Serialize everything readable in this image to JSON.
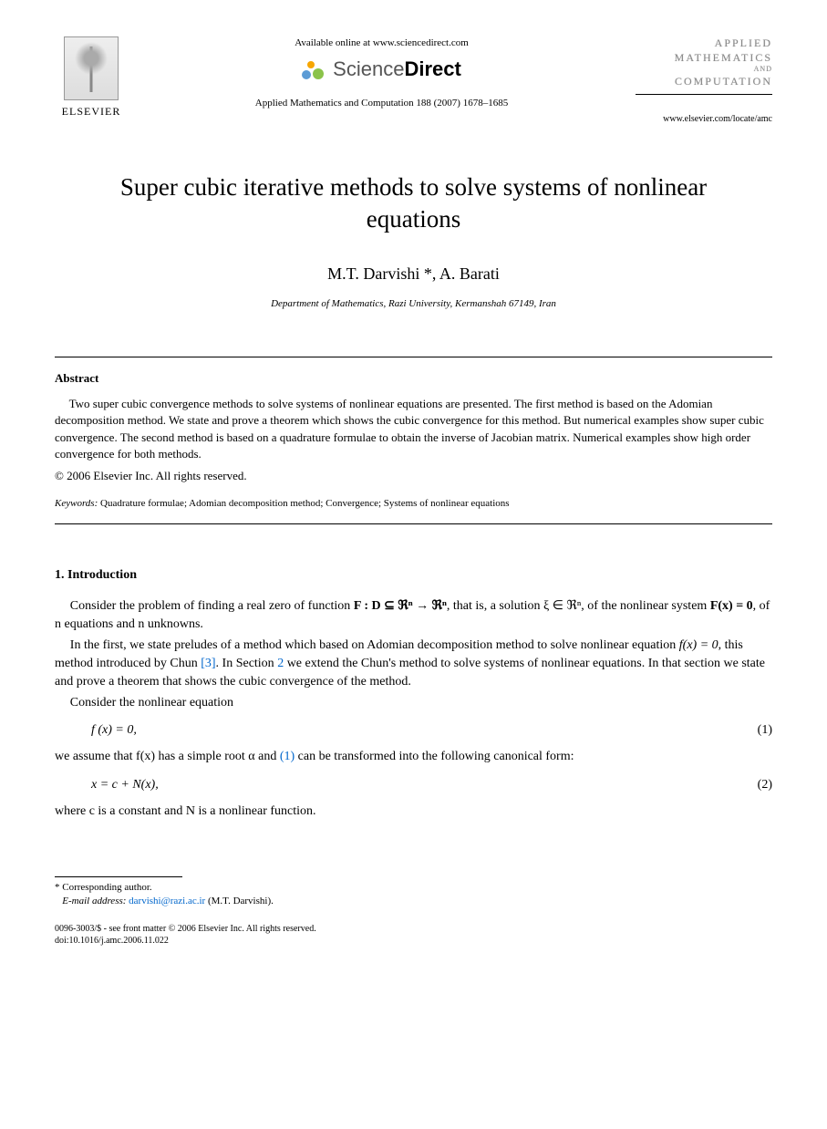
{
  "header": {
    "publisher_name": "ELSEVIER",
    "available_text": "Available online at www.sciencedirect.com",
    "sd_brand_light": "Science",
    "sd_brand_bold": "Direct",
    "journal_ref": "Applied Mathematics and Computation 188 (2007) 1678–1685",
    "journal_logo_lines": [
      "APPLIED",
      "MATHEMATICS",
      "AND",
      "COMPUTATION"
    ],
    "journal_url": "www.elsevier.com/locate/amc"
  },
  "title": "Super cubic iterative methods to solve systems of nonlinear equations",
  "authors_html": "M.T. Darvishi *, A. Barati",
  "author1": "M.T. Darvishi",
  "author_sep": " *, ",
  "author2": "A. Barati",
  "affiliation": "Department of Mathematics, Razi University, Kermanshah 67149, Iran",
  "abstract": {
    "heading": "Abstract",
    "text": "Two super cubic convergence methods to solve systems of nonlinear equations are presented. The first method is based on the Adomian decomposition method. We state and prove a theorem which shows the cubic convergence for this method. But numerical examples show super cubic convergence. The second method is based on a quadrature formulae to obtain the inverse of Jacobian matrix. Numerical examples show high order convergence for both methods.",
    "copyright": "© 2006 Elsevier Inc. All rights reserved."
  },
  "keywords": {
    "label": "Keywords:",
    "text": " Quadrature formulae; Adomian decomposition method; Convergence; Systems of nonlinear equations"
  },
  "introduction": {
    "heading": "1. Introduction",
    "p1_a": "Consider the problem of finding a real zero of function ",
    "p1_b": "F : D ⊆ ℜⁿ → ℜⁿ",
    "p1_c": ", that is, a solution ξ ∈ ℜⁿ, of the nonlinear system ",
    "p1_d": "F(x) = 0",
    "p1_e": ", of n equations and n unknowns.",
    "p2_a": "In the first, we state preludes of a method which based on Adomian decomposition method to solve nonlinear equation ",
    "p2_b": "f(x) = 0",
    "p2_c": ", this method introduced by Chun ",
    "p2_ref": "[3]",
    "p2_d": ". In Section ",
    "p2_sec": "2",
    "p2_e": " we extend the Chun's method to solve systems of nonlinear equations. In that section we state and prove a theorem that shows the cubic convergence of the method.",
    "p3": "Consider the nonlinear equation",
    "eq1": "f (x) = 0,",
    "eq1_num": "(1)",
    "p4_a": "we assume that f(x) has a simple root α and ",
    "p4_ref": "(1)",
    "p4_b": " can be transformed into the following canonical form:",
    "eq2": "x = c + N(x),",
    "eq2_num": "(2)",
    "p5": "where c is a constant and N is a nonlinear function."
  },
  "footnotes": {
    "corresponding": "* Corresponding author.",
    "email_label": "E-mail address:",
    "email": "darvishi@razi.ac.ir",
    "email_author": " (M.T. Darvishi)."
  },
  "footer": {
    "line1": "0096-3003/$ - see front matter © 2006 Elsevier Inc. All rights reserved.",
    "line2": "doi:10.1016/j.amc.2006.11.022"
  },
  "colors": {
    "link": "#0066cc",
    "text": "#000000",
    "background": "#ffffff"
  }
}
